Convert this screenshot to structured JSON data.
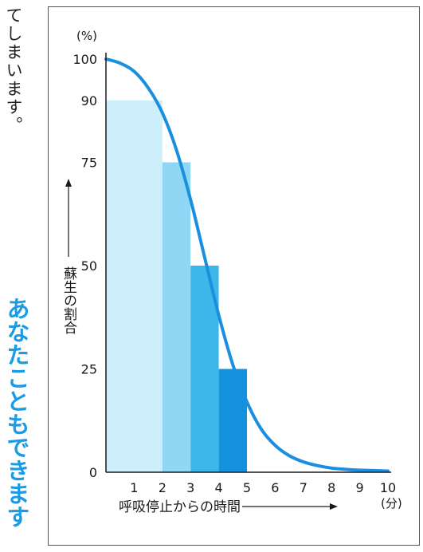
{
  "side_text": {
    "body": "てしまいます。",
    "banner": "あなたこともできます"
  },
  "chart_data": {
    "type": "bar",
    "title": "",
    "y_unit": "(%)",
    "x_unit": "(分)",
    "ylabel": "蘇生の割合",
    "xlabel": "呼吸停止からの時間",
    "ylim": [
      0,
      100
    ],
    "xlim": [
      0,
      10
    ],
    "y_ticks": [
      0,
      25,
      50,
      75,
      90,
      100
    ],
    "x_ticks": [
      1,
      2,
      3,
      4,
      5,
      6,
      7,
      8,
      9,
      10
    ],
    "bars": [
      {
        "x_start": 0,
        "x_end": 2,
        "value": 90,
        "color": "#cdeefb"
      },
      {
        "x_start": 2,
        "x_end": 3,
        "value": 75,
        "color": "#8fd7f4"
      },
      {
        "x_start": 3,
        "x_end": 4,
        "value": 50,
        "color": "#3db7ea"
      },
      {
        "x_start": 4,
        "x_end": 5,
        "value": 25,
        "color": "#1592de"
      }
    ],
    "curve": {
      "color": "#1a8fe0",
      "x": [
        0,
        0.5,
        1,
        1.5,
        2,
        2.5,
        3,
        3.5,
        4,
        4.5,
        5,
        5.5,
        6,
        6.5,
        7,
        7.5,
        8,
        8.5,
        9,
        9.5,
        10
      ],
      "y": [
        100,
        99,
        97,
        93,
        87,
        78,
        66,
        52,
        38,
        26,
        17,
        10.5,
        6.5,
        4,
        2.5,
        1.6,
        1,
        0.7,
        0.5,
        0.4,
        0.3
      ]
    },
    "grid": false,
    "legend": "none"
  }
}
